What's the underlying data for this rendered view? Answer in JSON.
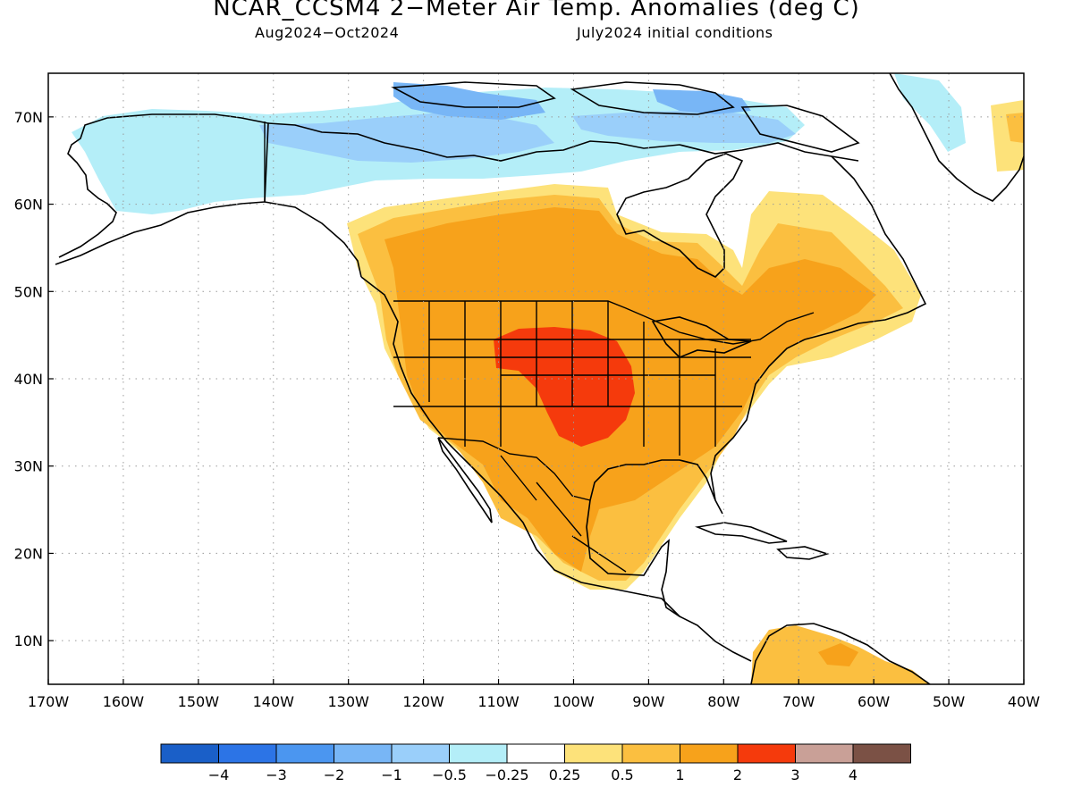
{
  "title": "NCAR_CCSM4 2−Meter Air Temp. Anomalies (deg C)",
  "subtitle_left": "Aug2024−Oct2024",
  "subtitle_right": "July2024 initial conditions",
  "map": {
    "projection": "cylindrical equidistant",
    "lon_range": [
      -170,
      -40
    ],
    "lat_range": [
      5,
      75
    ],
    "grid": true,
    "lon_ticks": [
      {
        "value": -170,
        "label": "170W"
      },
      {
        "value": -160,
        "label": "160W"
      },
      {
        "value": -150,
        "label": "150W"
      },
      {
        "value": -140,
        "label": "140W"
      },
      {
        "value": -130,
        "label": "130W"
      },
      {
        "value": -120,
        "label": "120W"
      },
      {
        "value": -110,
        "label": "110W"
      },
      {
        "value": -100,
        "label": "100W"
      },
      {
        "value": -90,
        "label": "90W"
      },
      {
        "value": -80,
        "label": "80W"
      },
      {
        "value": -70,
        "label": "70W"
      },
      {
        "value": -60,
        "label": "60W"
      },
      {
        "value": -50,
        "label": "50W"
      },
      {
        "value": -40,
        "label": "40W"
      }
    ],
    "lat_ticks": [
      {
        "value": 10,
        "label": "10N"
      },
      {
        "value": 20,
        "label": "20N"
      },
      {
        "value": 30,
        "label": "30N"
      },
      {
        "value": 40,
        "label": "40N"
      },
      {
        "value": 50,
        "label": "50N"
      },
      {
        "value": 60,
        "label": "60N"
      },
      {
        "value": 70,
        "label": "70N"
      }
    ]
  },
  "colorbar": {
    "colors": [
      "#1a5fc8",
      "#2c74e6",
      "#4b96f0",
      "#78b6f6",
      "#9acffa",
      "#b4eef8",
      "#ffffff",
      "#fde27a",
      "#fbbf40",
      "#f7a21b",
      "#f53a0c",
      "#c9a097",
      "#7b5145"
    ],
    "labels": [
      "−4",
      "−3",
      "−2",
      "−1",
      "−0.5",
      "−0.25",
      "0.25",
      "0.5",
      "1",
      "2",
      "3",
      "4"
    ]
  }
}
